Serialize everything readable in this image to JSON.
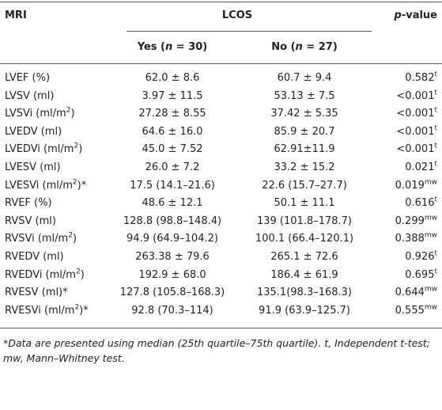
{
  "header": {
    "col1": "MRI",
    "group": "LCOS",
    "p_var": "p",
    "p_rest": "-value",
    "yes": {
      "pre": "Yes (",
      "var": "n",
      "post": " = 30)"
    },
    "no": {
      "pre": "No (",
      "var": "n",
      "post": " = 27)"
    }
  },
  "rows": [
    {
      "label": "LVEF (%)",
      "yes": "62.0 ± 8.6",
      "no": "60.7 ± 9.4",
      "p": "0.582",
      "p_sup": "t"
    },
    {
      "label": "LVSV (ml)",
      "yes": "3.97 ± 11.5",
      "no": "53.13 ± 7.5",
      "p": "<0.001",
      "p_sup": "t"
    },
    {
      "label": "LVSVi (ml/m",
      "label_sup": "2",
      "label_end": ")",
      "yes": "27.28 ± 8.55",
      "no": "37.42 ± 5.35",
      "p": "<0.001",
      "p_sup": "t"
    },
    {
      "label": "LVEDV (ml)",
      "yes": "64.6 ± 16.0",
      "no": "85.9 ± 20.7",
      "p": "<0.001",
      "p_sup": "t"
    },
    {
      "label": "LVEDVi (ml/m",
      "label_sup": "2",
      "label_end": ")",
      "yes": "45.0 ± 7.52",
      "no": "62.91±11.9",
      "p": "<0.001",
      "p_sup": "t"
    },
    {
      "label": "LVESV (ml)",
      "yes": "26.0 ± 7.2",
      "no": "33.2 ± 15.2",
      "p": "0.021",
      "p_sup": "t"
    },
    {
      "label": "LVESVi (ml/m",
      "label_sup": "2",
      "label_end": ")*",
      "yes": "17.5 (14.1–21.6)",
      "no": "22.6 (15.7–27.7)",
      "p": "0.019",
      "p_sup": "mw"
    },
    {
      "label": "RVEF (%)",
      "yes": "48.6 ± 12.1",
      "no": "50.1 ± 11.1",
      "p": "0.616",
      "p_sup": "t"
    },
    {
      "label": "RVSV (ml)",
      "yes": "128.8 (98.8–148.4)",
      "no": "139 (101.8–178.7)",
      "p": "0.299",
      "p_sup": "mw"
    },
    {
      "label": "RVSVi (ml/m",
      "label_sup": "2",
      "label_end": ")",
      "yes": "94.9 (64.9–104.2)",
      "no": "100.1 (66.4–120.1)",
      "p": "0.388",
      "p_sup": "mw"
    },
    {
      "label": "RVEDV (ml)",
      "yes": "263.38 ± 79.6",
      "no": "265.1 ± 72.6",
      "p": "0.926",
      "p_sup": "t"
    },
    {
      "label": "RVEDVi (ml/m",
      "label_sup": "2",
      "label_end": ")",
      "yes": "192.9 ± 68.0",
      "no": "186.4 ± 61.9",
      "p": "0.695",
      "p_sup": "t"
    },
    {
      "label": "RVESV (ml)*",
      "yes": "127.8 (105.8–168.3)",
      "no": "135.1(98.3–168.3)",
      "p": "0.644",
      "p_sup": "mw"
    },
    {
      "label": "RVESVi (ml/m",
      "label_sup": "2",
      "label_end": ")*",
      "yes": "92.8 (70.3–114)",
      "no": "91.9 (63.9–125.7)",
      "p": "0.555",
      "p_sup": "mw"
    }
  ],
  "footnote": "*Data are presented using median (25th quartile–75th quartile). t, Independent t-test; mw, Mann–Whitney test."
}
